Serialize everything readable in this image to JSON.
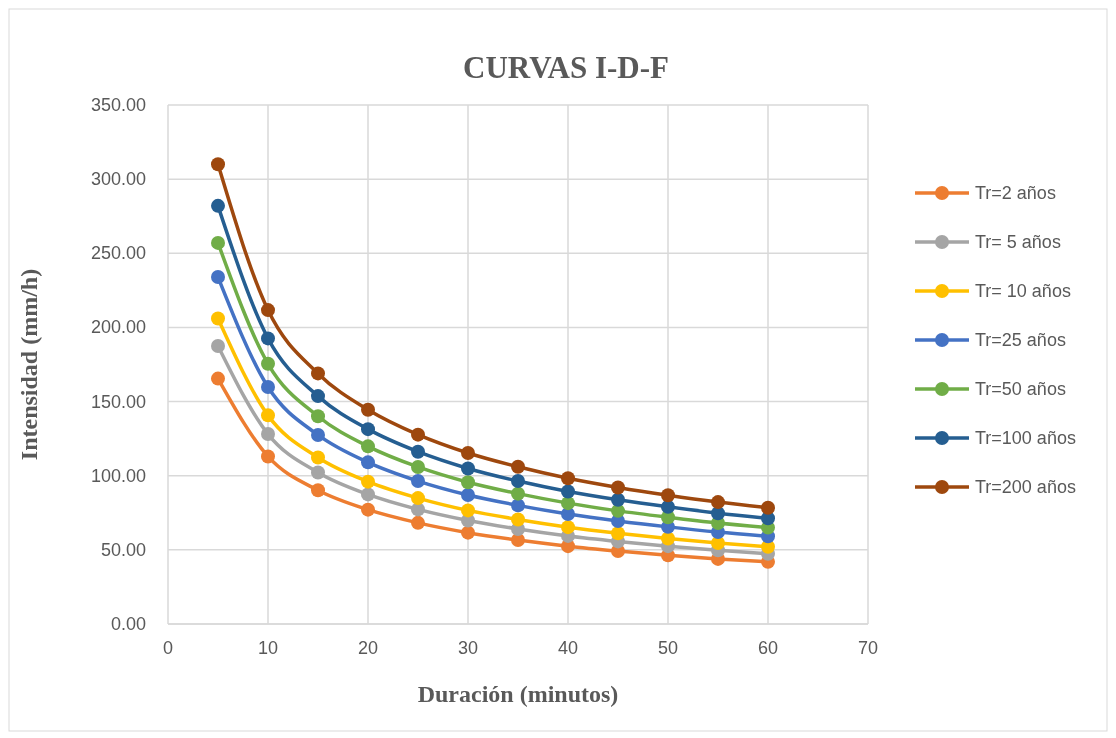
{
  "chart_data": {
    "type": "line",
    "title": "CURVAS I-D-F",
    "xlabel": "Duración (minutos)",
    "ylabel": "Intensidad (mm/h)",
    "x": [
      5,
      10,
      15,
      20,
      25,
      30,
      35,
      40,
      45,
      50,
      55,
      60
    ],
    "xlim": [
      0,
      70
    ],
    "xticks": [
      0,
      10,
      20,
      30,
      40,
      50,
      60,
      70
    ],
    "ylim": [
      0,
      350
    ],
    "yticks": [
      {
        "value": 0,
        "label": "0.00"
      },
      {
        "value": 50,
        "label": "50.00"
      },
      {
        "value": 100,
        "label": "100.00"
      },
      {
        "value": 150,
        "label": "150.00"
      },
      {
        "value": 200,
        "label": "200.00"
      },
      {
        "value": 250,
        "label": "250.00"
      },
      {
        "value": 300,
        "label": "300.00"
      },
      {
        "value": 350,
        "label": "350.00"
      }
    ],
    "grid": true,
    "legend": "right",
    "marker": "circle",
    "line_style": "solid",
    "series": [
      {
        "name": "Tr=2 años",
        "color": "#ed7d31",
        "values": [
          165.5,
          113.0,
          90.2,
          77.1,
          68.2,
          61.6,
          56.6,
          52.5,
          49.2,
          46.3,
          43.9,
          41.9
        ]
      },
      {
        "name": "Tr= 5 años",
        "color": "#a5a5a5",
        "values": [
          187.5,
          128.1,
          102.2,
          87.4,
          77.3,
          69.8,
          64.1,
          59.4,
          55.7,
          52.5,
          49.7,
          47.4
        ]
      },
      {
        "name": "Tr= 10 años",
        "color": "#ffc000",
        "values": [
          206.0,
          140.7,
          112.3,
          96.0,
          84.9,
          76.6,
          70.5,
          65.3,
          61.2,
          57.7,
          54.6,
          52.1
        ]
      },
      {
        "name": "Tr=25 años",
        "color": "#4472c4",
        "values": [
          234.0,
          159.8,
          127.5,
          109.0,
          96.4,
          87.0,
          80.0,
          74.2,
          69.5,
          65.5,
          62.0,
          59.2
        ]
      },
      {
        "name": "Tr=50 años",
        "color": "#70ad47",
        "values": [
          257.0,
          175.5,
          140.1,
          119.8,
          105.9,
          95.6,
          87.9,
          81.5,
          76.3,
          72.0,
          68.1,
          65.0
        ]
      },
      {
        "name": "Tr=100 años",
        "color": "#255e91",
        "values": [
          282.0,
          192.6,
          153.7,
          131.4,
          116.2,
          104.9,
          96.4,
          89.4,
          83.8,
          79.0,
          74.7,
          71.3
        ]
      },
      {
        "name": "Tr=200 años",
        "color": "#9e480e",
        "values": [
          310.0,
          211.7,
          169.0,
          144.5,
          127.7,
          115.3,
          106.0,
          98.3,
          92.1,
          86.8,
          82.2,
          78.4
        ]
      }
    ]
  }
}
